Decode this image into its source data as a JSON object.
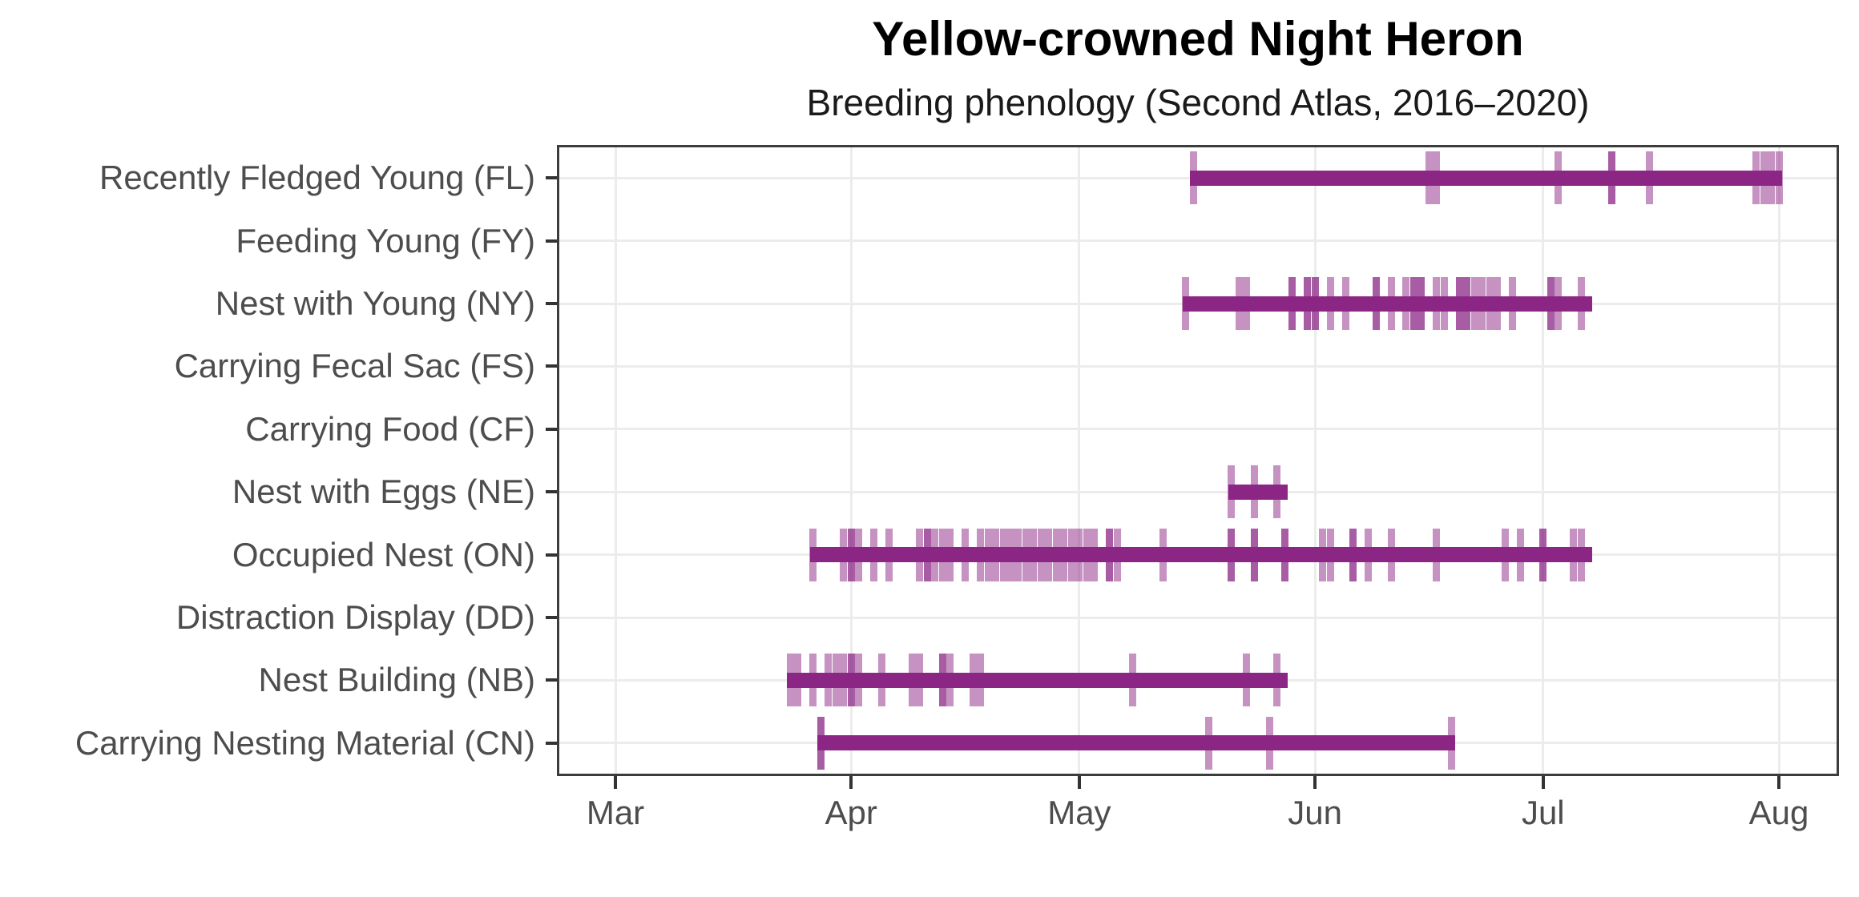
{
  "chart_data": {
    "type": "timeline",
    "title": "Yellow-crowned Night Heron",
    "subtitle": "Breeding phenology (Second Atlas, 2016–2020)",
    "x_axis": {
      "tick_labels": [
        "Mar",
        "Apr",
        "May",
        "Jun",
        "Jul",
        "Aug"
      ],
      "unit": "date",
      "range": [
        "late Feb",
        "early Aug"
      ]
    },
    "y_axis": {
      "categories": [
        "Recently Fledged Young (FL)",
        "Feeding Young (FY)",
        "Nest with Young (NY)",
        "Carrying Fecal Sac (FS)",
        "Carrying Food (CF)",
        "Nest with Eggs (NE)",
        "Occupied Nest (ON)",
        "Distraction Display (DD)",
        "Nest Building (NB)",
        "Carrying Nesting Material (CN)"
      ]
    },
    "legend": "none",
    "grid": "major only",
    "colors": {
      "bar": "#8B2685",
      "tick_rgb": "139,38,133",
      "tick_alpha_single": 0.5,
      "tick_alpha_double": 0.75,
      "gridline": "#ececec",
      "axis_text": "#4d4d4d",
      "panel_border": "#3c3c3c",
      "axis_tick_mark": "#333333"
    },
    "series": [
      {
        "code": "FL",
        "label": "Recently Fledged Young (FL)",
        "bar": [
          "May 16",
          "Aug 1"
        ],
        "ticks": [
          [
            "May 16",
            1
          ],
          [
            "Jun 16",
            1
          ],
          [
            "Jun 17",
            1
          ],
          [
            "Jul 3",
            1
          ],
          [
            "Jul 10",
            2
          ],
          [
            "Jul 15",
            1
          ],
          [
            "Jul 29",
            1
          ],
          [
            "Jul 30",
            1
          ],
          [
            "Jul 31",
            1
          ],
          [
            "Aug 1",
            1
          ]
        ]
      },
      {
        "code": "FY",
        "label": "Feeding Young (FY)",
        "bar": null,
        "ticks": []
      },
      {
        "code": "NY",
        "label": "Nest with Young (NY)",
        "bar": [
          "May 15",
          "Jul 7"
        ],
        "ticks": [
          [
            "May 15",
            1
          ],
          [
            "May 22",
            1
          ],
          [
            "May 23",
            1
          ],
          [
            "May 29",
            2
          ],
          [
            "May 31",
            2
          ],
          [
            "Jun 1",
            2
          ],
          [
            "Jun 3",
            1
          ],
          [
            "Jun 5",
            1
          ],
          [
            "Jun 9",
            2
          ],
          [
            "Jun 11",
            1
          ],
          [
            "Jun 13",
            1
          ],
          [
            "Jun 14",
            2
          ],
          [
            "Jun 15",
            2
          ],
          [
            "Jun 17",
            1
          ],
          [
            "Jun 18",
            1
          ],
          [
            "Jun 20",
            2
          ],
          [
            "Jun 21",
            2
          ],
          [
            "Jun 22",
            1
          ],
          [
            "Jun 23",
            1
          ],
          [
            "Jun 24",
            1
          ],
          [
            "Jun 25",
            1
          ],
          [
            "Jun 27",
            1
          ],
          [
            "Jul 2",
            2
          ],
          [
            "Jul 3",
            1
          ],
          [
            "Jul 6",
            1
          ]
        ]
      },
      {
        "code": "FS",
        "label": "Carrying Fecal Sac (FS)",
        "bar": null,
        "ticks": []
      },
      {
        "code": "CF",
        "label": "Carrying Food (CF)",
        "bar": null,
        "ticks": []
      },
      {
        "code": "NE",
        "label": "Nest with Eggs (NE)",
        "bar": [
          "May 21",
          "May 28"
        ],
        "ticks": [
          [
            "May 21",
            1
          ],
          [
            "May 24",
            1
          ],
          [
            "May 27",
            1
          ]
        ]
      },
      {
        "code": "ON",
        "label": "Occupied Nest (ON)",
        "bar": [
          "Mar 27",
          "Jul 7"
        ],
        "ticks": [
          [
            "Mar 27",
            1
          ],
          [
            "Mar 31",
            1
          ],
          [
            "Apr 1",
            2
          ],
          [
            "Apr 2",
            1
          ],
          [
            "Apr 4",
            1
          ],
          [
            "Apr 6",
            1
          ],
          [
            "Apr 10",
            1
          ],
          [
            "Apr 11",
            2
          ],
          [
            "Apr 12",
            1
          ],
          [
            "Apr 13",
            1
          ],
          [
            "Apr 14",
            1
          ],
          [
            "Apr 16",
            1
          ],
          [
            "Apr 18",
            1
          ],
          [
            "Apr 19",
            1
          ],
          [
            "Apr 20",
            1
          ],
          [
            "Apr 21",
            1
          ],
          [
            "Apr 22",
            1
          ],
          [
            "Apr 23",
            1
          ],
          [
            "Apr 24",
            1
          ],
          [
            "Apr 25",
            1
          ],
          [
            "Apr 26",
            1
          ],
          [
            "Apr 27",
            1
          ],
          [
            "Apr 28",
            1
          ],
          [
            "Apr 29",
            1
          ],
          [
            "Apr 30",
            1
          ],
          [
            "May 1",
            1
          ],
          [
            "May 2",
            1
          ],
          [
            "May 3",
            1
          ],
          [
            "May 5",
            2
          ],
          [
            "May 6",
            1
          ],
          [
            "May 12",
            1
          ],
          [
            "May 21",
            2
          ],
          [
            "May 24",
            2
          ],
          [
            "May 28",
            2
          ],
          [
            "Jun 2",
            1
          ],
          [
            "Jun 3",
            1
          ],
          [
            "Jun 6",
            2
          ],
          [
            "Jun 8",
            1
          ],
          [
            "Jun 11",
            1
          ],
          [
            "Jun 17",
            1
          ],
          [
            "Jun 26",
            1
          ],
          [
            "Jun 28",
            1
          ],
          [
            "Jul 1",
            2
          ],
          [
            "Jul 5",
            1
          ],
          [
            "Jul 6",
            1
          ]
        ]
      },
      {
        "code": "DD",
        "label": "Distraction Display (DD)",
        "bar": null,
        "ticks": []
      },
      {
        "code": "NB",
        "label": "Nest Building (NB)",
        "bar": [
          "Mar 24",
          "May 28"
        ],
        "ticks": [
          [
            "Mar 24",
            1
          ],
          [
            "Mar 25",
            1
          ],
          [
            "Mar 27",
            1
          ],
          [
            "Mar 29",
            1
          ],
          [
            "Mar 30",
            1
          ],
          [
            "Mar 31",
            1
          ],
          [
            "Apr 1",
            2
          ],
          [
            "Apr 2",
            1
          ],
          [
            "Apr 5",
            1
          ],
          [
            "Apr 9",
            1
          ],
          [
            "Apr 10",
            1
          ],
          [
            "Apr 13",
            2
          ],
          [
            "Apr 14",
            1
          ],
          [
            "Apr 17",
            1
          ],
          [
            "Apr 18",
            1
          ],
          [
            "May 8",
            1
          ],
          [
            "May 23",
            1
          ],
          [
            "May 27",
            1
          ]
        ]
      },
      {
        "code": "CN",
        "label": "Carrying Nesting Material (CN)",
        "bar": [
          "Mar 28",
          "Jun 19"
        ],
        "ticks": [
          [
            "Mar 28",
            2
          ],
          [
            "May 18",
            1
          ],
          [
            "May 26",
            1
          ],
          [
            "Jun 19",
            1
          ]
        ]
      }
    ]
  }
}
